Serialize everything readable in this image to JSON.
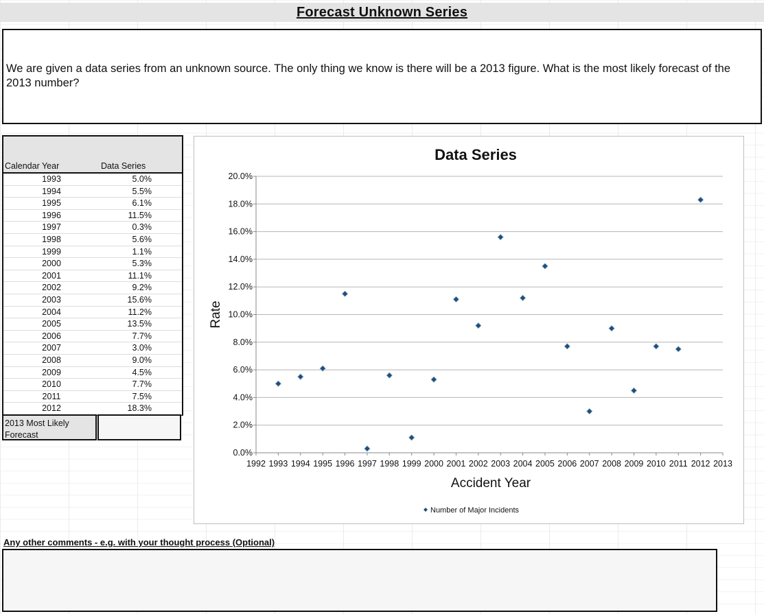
{
  "page": {
    "title": "Forecast Unknown Series",
    "question": "We are given a data series from an unknown source.  The only thing we know is there will be a 2013 figure.  What is the most likely forecast of the 2013 number?",
    "comments_label": "Any other comments - e.g. with your thought process (Optional)",
    "comments_value": ""
  },
  "table": {
    "col1_header": "Calendar Year",
    "col2_header": "Data Series",
    "rows": [
      {
        "year": "1993",
        "value": "5.0%"
      },
      {
        "year": "1994",
        "value": "5.5%"
      },
      {
        "year": "1995",
        "value": "6.1%"
      },
      {
        "year": "1996",
        "value": "11.5%"
      },
      {
        "year": "1997",
        "value": "0.3%"
      },
      {
        "year": "1998",
        "value": "5.6%"
      },
      {
        "year": "1999",
        "value": "1.1%"
      },
      {
        "year": "2000",
        "value": "5.3%"
      },
      {
        "year": "2001",
        "value": "11.1%"
      },
      {
        "year": "2002",
        "value": "9.2%"
      },
      {
        "year": "2003",
        "value": "15.6%"
      },
      {
        "year": "2004",
        "value": "11.2%"
      },
      {
        "year": "2005",
        "value": "13.5%"
      },
      {
        "year": "2006",
        "value": "7.7%"
      },
      {
        "year": "2007",
        "value": "3.0%"
      },
      {
        "year": "2008",
        "value": "9.0%"
      },
      {
        "year": "2009",
        "value": "4.5%"
      },
      {
        "year": "2010",
        "value": "7.7%"
      },
      {
        "year": "2011",
        "value": "7.5%"
      },
      {
        "year": "2012",
        "value": "18.3%"
      }
    ],
    "forecast_label": "2013 Most Likely Forecast",
    "forecast_value": ""
  },
  "chart_data": {
    "type": "scatter",
    "title": "Data Series",
    "xlabel": "Accident Year",
    "ylabel": "Rate",
    "xlim": [
      1992,
      2013
    ],
    "ylim": [
      0,
      0.2
    ],
    "x_ticks": [
      "1992",
      "1993",
      "1994",
      "1995",
      "1996",
      "1997",
      "1998",
      "1999",
      "2000",
      "2001",
      "2002",
      "2003",
      "2004",
      "2005",
      "2006",
      "2007",
      "2008",
      "2009",
      "2010",
      "2011",
      "2012",
      "2013"
    ],
    "y_ticks": [
      "0.0%",
      "2.0%",
      "4.0%",
      "6.0%",
      "8.0%",
      "10.0%",
      "12.0%",
      "14.0%",
      "16.0%",
      "18.0%",
      "20.0%"
    ],
    "grid": true,
    "legend_position": "bottom",
    "series": [
      {
        "name": "Number of Major Incidents",
        "color": "#1f4e79",
        "x": [
          1993,
          1994,
          1995,
          1996,
          1997,
          1998,
          1999,
          2000,
          2001,
          2002,
          2003,
          2004,
          2005,
          2006,
          2007,
          2008,
          2009,
          2010,
          2011,
          2012
        ],
        "y": [
          0.05,
          0.055,
          0.061,
          0.115,
          0.003,
          0.056,
          0.011,
          0.053,
          0.111,
          0.092,
          0.156,
          0.112,
          0.135,
          0.077,
          0.03,
          0.09,
          0.045,
          0.077,
          0.075,
          0.183
        ]
      }
    ]
  }
}
